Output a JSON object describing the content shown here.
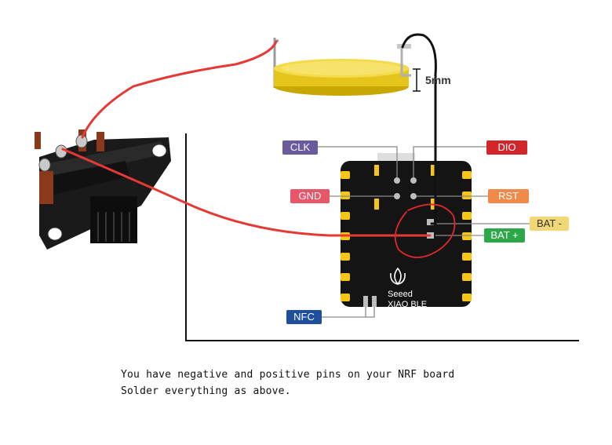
{
  "labels": {
    "clk": "CLK",
    "dio": "DIO",
    "gnd": "GND",
    "rst": "RST",
    "bat_minus": "BAT -",
    "bat_plus": "BAT +",
    "nfc": "NFC"
  },
  "board": {
    "brand": "Seeed",
    "model": "XIAO BLE"
  },
  "dimension": "5mm",
  "notes": {
    "line1": "You have negative and positive pins on your NRF board",
    "line2": "Solder everything as above."
  },
  "colors": {
    "clk": "#6a5a9e",
    "dio": "#d3262b",
    "gnd": "#e8566a",
    "rst": "#ef8a4a",
    "bat_minus": "#f2d775",
    "bat_plus": "#2ca84a",
    "nfc": "#1f4e9c",
    "wire_red": "#e53935",
    "wire_black": "#111111"
  }
}
